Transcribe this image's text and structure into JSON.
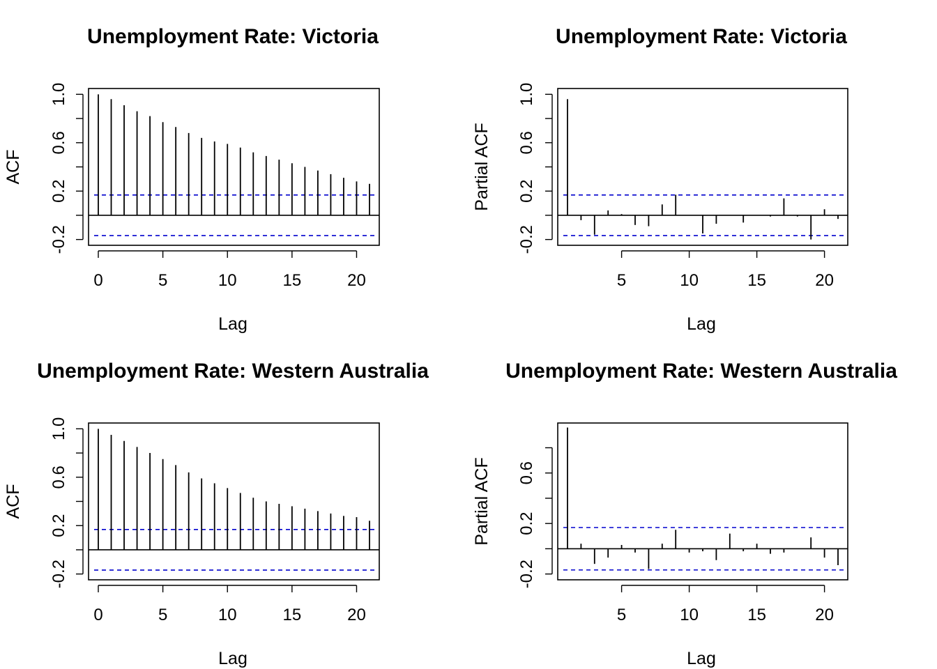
{
  "chart_data": [
    {
      "type": "bar",
      "title": "Unemployment Rate: Victoria",
      "xlabel": "Lag",
      "ylabel": "ACF",
      "x_ticks": [
        0,
        5,
        10,
        15,
        20
      ],
      "y_ticks": [
        -0.2,
        0.2,
        0.6,
        1.0
      ],
      "y_ticks_minor": [
        0.0,
        0.4,
        0.8
      ],
      "y_tick_labels": [
        "-0.2",
        "0.2",
        "0.6",
        "1.0"
      ],
      "ylim": [
        -0.2,
        1.0
      ],
      "xlim": [
        0,
        21
      ],
      "conf_limit": 0.168,
      "lags": [
        0,
        1,
        2,
        3,
        4,
        5,
        6,
        7,
        8,
        9,
        10,
        11,
        12,
        13,
        14,
        15,
        16,
        17,
        18,
        19,
        20,
        21
      ],
      "values": [
        1.0,
        0.96,
        0.91,
        0.86,
        0.82,
        0.77,
        0.73,
        0.68,
        0.64,
        0.61,
        0.59,
        0.56,
        0.52,
        0.49,
        0.46,
        0.43,
        0.4,
        0.37,
        0.34,
        0.31,
        0.28,
        0.26
      ]
    },
    {
      "type": "bar",
      "title": "Unemployment Rate: Victoria",
      "xlabel": "Lag",
      "ylabel": "Partial ACF",
      "x_ticks": [
        5,
        10,
        15,
        20
      ],
      "y_ticks": [
        -0.2,
        0.2,
        0.6,
        1.0
      ],
      "y_ticks_minor": [
        0.0,
        0.4,
        0.8
      ],
      "y_tick_labels": [
        "-0.2",
        "0.2",
        "0.6",
        "1.0"
      ],
      "ylim": [
        -0.2,
        1.0
      ],
      "xlim": [
        1,
        21
      ],
      "conf_limit": 0.168,
      "lags": [
        1,
        2,
        3,
        4,
        5,
        6,
        7,
        8,
        9,
        10,
        11,
        12,
        13,
        14,
        15,
        16,
        17,
        18,
        19,
        20,
        21
      ],
      "values": [
        0.96,
        -0.04,
        -0.16,
        0.04,
        0.01,
        -0.08,
        -0.09,
        0.09,
        0.17,
        0.0,
        -0.15,
        -0.07,
        0.0,
        -0.06,
        0.0,
        -0.01,
        0.14,
        -0.01,
        -0.2,
        0.05,
        -0.03
      ]
    },
    {
      "type": "bar",
      "title": "Unemployment Rate: Western Australia",
      "xlabel": "Lag",
      "ylabel": "ACF",
      "x_ticks": [
        0,
        5,
        10,
        15,
        20
      ],
      "y_ticks": [
        -0.2,
        0.2,
        0.6,
        1.0
      ],
      "y_ticks_minor": [
        0.0,
        0.4,
        0.8
      ],
      "y_tick_labels": [
        "-0.2",
        "0.2",
        "0.6",
        "1.0"
      ],
      "ylim": [
        -0.2,
        1.0
      ],
      "xlim": [
        0,
        21
      ],
      "conf_limit": 0.168,
      "lags": [
        0,
        1,
        2,
        3,
        4,
        5,
        6,
        7,
        8,
        9,
        10,
        11,
        12,
        13,
        14,
        15,
        16,
        17,
        18,
        19,
        20,
        21
      ],
      "values": [
        1.0,
        0.95,
        0.9,
        0.85,
        0.8,
        0.75,
        0.7,
        0.64,
        0.59,
        0.55,
        0.51,
        0.47,
        0.43,
        0.4,
        0.38,
        0.36,
        0.34,
        0.32,
        0.3,
        0.28,
        0.27,
        0.24
      ]
    },
    {
      "type": "bar",
      "title": "Unemployment Rate: Western Australia",
      "xlabel": "Lag",
      "ylabel": "Partial ACF",
      "x_ticks": [
        5,
        10,
        15,
        20
      ],
      "y_ticks": [
        -0.2,
        0.2,
        0.6
      ],
      "y_ticks_minor": [
        0.0,
        0.4,
        0.8
      ],
      "y_tick_labels": [
        "-0.2",
        "0.2",
        "0.6"
      ],
      "ylim": [
        -0.2,
        0.95
      ],
      "xlim": [
        1,
        21
      ],
      "conf_limit": 0.168,
      "lags": [
        1,
        2,
        3,
        4,
        5,
        6,
        7,
        8,
        9,
        10,
        11,
        12,
        13,
        14,
        15,
        16,
        17,
        18,
        19,
        20,
        21
      ],
      "values": [
        0.96,
        0.04,
        -0.12,
        -0.07,
        0.03,
        -0.03,
        -0.16,
        0.04,
        0.15,
        -0.03,
        -0.02,
        -0.09,
        0.12,
        -0.02,
        0.04,
        -0.04,
        -0.03,
        0.0,
        0.09,
        -0.07,
        -0.13
      ]
    }
  ]
}
